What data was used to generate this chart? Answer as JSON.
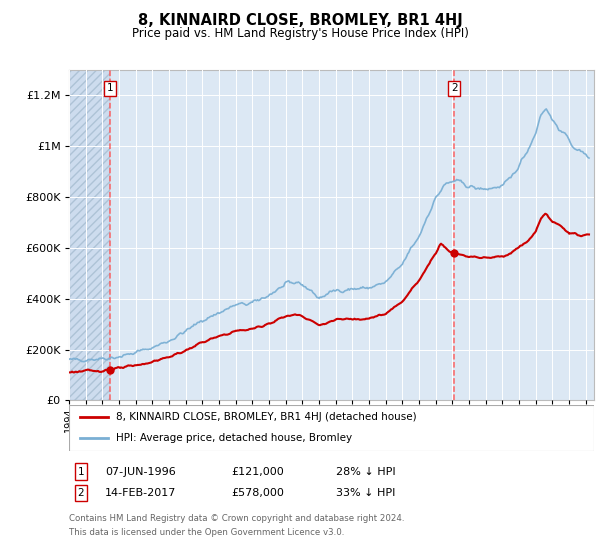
{
  "title": "8, KINNAIRD CLOSE, BROMLEY, BR1 4HJ",
  "subtitle": "Price paid vs. HM Land Registry's House Price Index (HPI)",
  "legend_line1": "8, KINNAIRD CLOSE, BROMLEY, BR1 4HJ (detached house)",
  "legend_line2": "HPI: Average price, detached house, Bromley",
  "annotation1_label": "1",
  "annotation1_date": "07-JUN-1996",
  "annotation1_price": "£121,000",
  "annotation1_hpi": "28% ↓ HPI",
  "annotation2_label": "2",
  "annotation2_date": "14-FEB-2017",
  "annotation2_price": "£578,000",
  "annotation2_hpi": "33% ↓ HPI",
  "footnote_line1": "Contains HM Land Registry data © Crown copyright and database right 2024.",
  "footnote_line2": "This data is licensed under the Open Government Licence v3.0.",
  "sale1_year": 1996.44,
  "sale1_price": 121000,
  "sale2_year": 2017.12,
  "sale2_price": 578000,
  "plot_bg": "#dce8f4",
  "red_line_color": "#cc0000",
  "blue_line_color": "#7aafd4",
  "dashed_line_color": "#ff5555",
  "grid_color": "#ffffff",
  "ylim_max": 1300000,
  "xlim_start": 1994.0,
  "xlim_end": 2025.5,
  "hpi_anchors_x": [
    1994.0,
    1995.0,
    1996.0,
    1997.0,
    1998.0,
    1999.0,
    2000.0,
    2001.0,
    2002.0,
    2003.0,
    2004.0,
    2005.0,
    2006.0,
    2007.0,
    2007.8,
    2008.5,
    2009.0,
    2009.5,
    2010.0,
    2011.0,
    2012.0,
    2013.0,
    2014.0,
    2014.5,
    2015.0,
    2015.5,
    2016.0,
    2016.5,
    2017.0,
    2017.5,
    2018.0,
    2018.5,
    2019.0,
    2019.5,
    2020.0,
    2020.5,
    2021.0,
    2021.5,
    2022.0,
    2022.3,
    2022.6,
    2023.0,
    2023.5,
    2024.0,
    2024.5,
    2025.2
  ],
  "hpi_anchors_y": [
    158000,
    162000,
    165000,
    172000,
    188000,
    208000,
    235000,
    272000,
    315000,
    345000,
    375000,
    382000,
    415000,
    455000,
    465000,
    432000,
    402000,
    418000,
    433000,
    438000,
    443000,
    463000,
    535000,
    595000,
    645000,
    725000,
    795000,
    845000,
    862000,
    858000,
    843000,
    832000,
    832000,
    837000,
    842000,
    872000,
    925000,
    983000,
    1053000,
    1123000,
    1153000,
    1103000,
    1063000,
    1023000,
    983000,
    963000
  ],
  "prop_anchors_x": [
    1994.0,
    1995.0,
    1996.0,
    1996.44,
    1997.0,
    1998.0,
    1999.0,
    2000.0,
    2001.0,
    2002.0,
    2003.0,
    2004.0,
    2005.0,
    2006.0,
    2007.0,
    2007.8,
    2008.5,
    2009.0,
    2009.5,
    2010.0,
    2011.0,
    2012.0,
    2013.0,
    2014.0,
    2014.5,
    2015.0,
    2015.5,
    2016.0,
    2016.3,
    2016.5,
    2016.8,
    2017.0,
    2017.12,
    2017.5,
    2018.0,
    2018.5,
    2019.0,
    2019.5,
    2020.0,
    2020.5,
    2021.0,
    2021.5,
    2022.0,
    2022.3,
    2022.6,
    2023.0,
    2023.5,
    2024.0,
    2024.5,
    2025.2
  ],
  "prop_anchors_y": [
    112000,
    115000,
    118000,
    121000,
    126000,
    137000,
    152000,
    171000,
    196000,
    229000,
    251000,
    273000,
    281000,
    303000,
    331000,
    339000,
    316000,
    295000,
    306000,
    317000,
    321000,
    324000,
    339000,
    390000,
    434000,
    470000,
    528000,
    580000,
    620000,
    608000,
    586000,
    580000,
    578000,
    574000,
    567000,
    563000,
    562000,
    564000,
    567000,
    580000,
    603000,
    623000,
    663000,
    718000,
    733000,
    703000,
    683000,
    663000,
    648000,
    653000
  ]
}
